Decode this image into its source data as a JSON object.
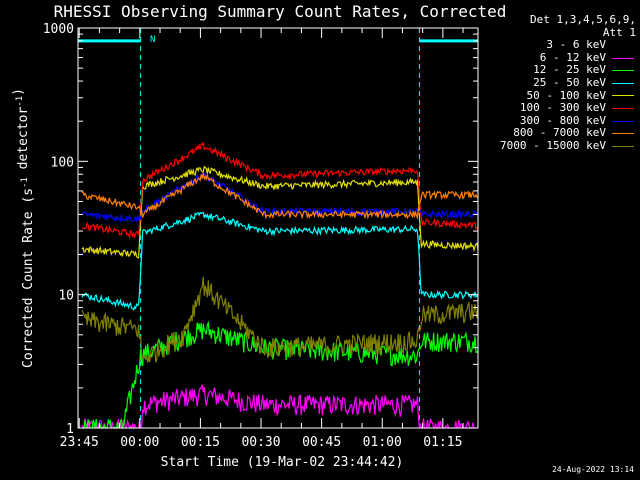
{
  "chart_data": {
    "type": "line",
    "title": "RHESSI Observing Summary Count Rates, Corrected",
    "xlabel": "Start Time (19-Mar-02 23:44:42)",
    "ylabel": "Corrected Count Rate (s^-1 detector^-1)",
    "yscale": "log",
    "ylim": [
      1,
      1000
    ],
    "xlim_minutes": [
      -1.0,
      98.0
    ],
    "x_ticks": [
      "23:45",
      "00:00",
      "00:15",
      "00:30",
      "00:45",
      "01:00",
      "01:15"
    ],
    "y_ticks": [
      "1",
      "10",
      "100",
      "1000"
    ],
    "night_windows": [
      [
        -1.0,
        14.5
      ],
      [
        83.5,
        98.0
      ]
    ],
    "night_line_value": 800,
    "flag_label": "N",
    "legend_header": [
      "Det 1,3,4,5,6,9,",
      "Att 1"
    ],
    "series": [
      {
        "name": "3 - 6 keV",
        "color": "#000000",
        "points": []
      },
      {
        "name": "6 - 12 keV",
        "color": "#ff00ff",
        "points": [
          [
            0,
            1.0
          ],
          [
            14.5,
            1.0
          ],
          [
            15,
            1.5
          ],
          [
            30,
            1.8
          ],
          [
            45,
            1.5
          ],
          [
            83,
            1.5
          ],
          [
            83.5,
            1.0
          ],
          [
            98,
            1.0
          ]
        ]
      },
      {
        "name": "12 - 25 keV",
        "color": "#00ff00",
        "points": [
          [
            0,
            1.0
          ],
          [
            10,
            1.0
          ],
          [
            14.5,
            3.5
          ],
          [
            30,
            5.5
          ],
          [
            45,
            4.0
          ],
          [
            83,
            3.5
          ],
          [
            84,
            4.5
          ],
          [
            98,
            4.5
          ]
        ]
      },
      {
        "name": "25 - 50 keV",
        "color": "#00ffff",
        "points": [
          [
            0,
            10
          ],
          [
            14,
            8
          ],
          [
            15,
            29
          ],
          [
            30,
            40
          ],
          [
            45,
            30
          ],
          [
            83,
            31
          ],
          [
            84,
            10
          ],
          [
            98,
            10
          ]
        ]
      },
      {
        "name": "50 - 100 keV",
        "color": "#e0e000",
        "points": [
          [
            0,
            22
          ],
          [
            14,
            20
          ],
          [
            15,
            65
          ],
          [
            30,
            87
          ],
          [
            45,
            65
          ],
          [
            83,
            70
          ],
          [
            84,
            24
          ],
          [
            98,
            23
          ]
        ]
      },
      {
        "name": "100 - 300 keV",
        "color": "#ff0000",
        "points": [
          [
            0,
            33
          ],
          [
            14,
            28
          ],
          [
            15,
            72
          ],
          [
            30,
            130
          ],
          [
            45,
            78
          ],
          [
            83,
            86
          ],
          [
            84,
            35
          ],
          [
            98,
            33
          ]
        ]
      },
      {
        "name": "300 - 800 keV",
        "color": "#0000ff",
        "points": [
          [
            0,
            40
          ],
          [
            14,
            37
          ],
          [
            15,
            42
          ],
          [
            30,
            80
          ],
          [
            45,
            42
          ],
          [
            83,
            42
          ],
          [
            84,
            40
          ],
          [
            98,
            40
          ]
        ]
      },
      {
        "name": "800 - 7000 keV",
        "color": "#ff8000",
        "points": [
          [
            0,
            56
          ],
          [
            14,
            45
          ],
          [
            15,
            40
          ],
          [
            30,
            78
          ],
          [
            45,
            40
          ],
          [
            83,
            40
          ],
          [
            84,
            56
          ],
          [
            98,
            56
          ]
        ]
      },
      {
        "name": "7000 - 15000 keV",
        "color": "#808000",
        "points": [
          [
            0,
            6.5
          ],
          [
            14,
            5.5
          ],
          [
            15,
            3.3
          ],
          [
            25,
            5
          ],
          [
            30,
            12
          ],
          [
            45,
            4
          ],
          [
            83,
            4.5
          ],
          [
            84,
            7
          ],
          [
            98,
            7.5
          ]
        ]
      }
    ]
  },
  "footer": {
    "timestamp": "24-Aug-2022 13:14"
  }
}
